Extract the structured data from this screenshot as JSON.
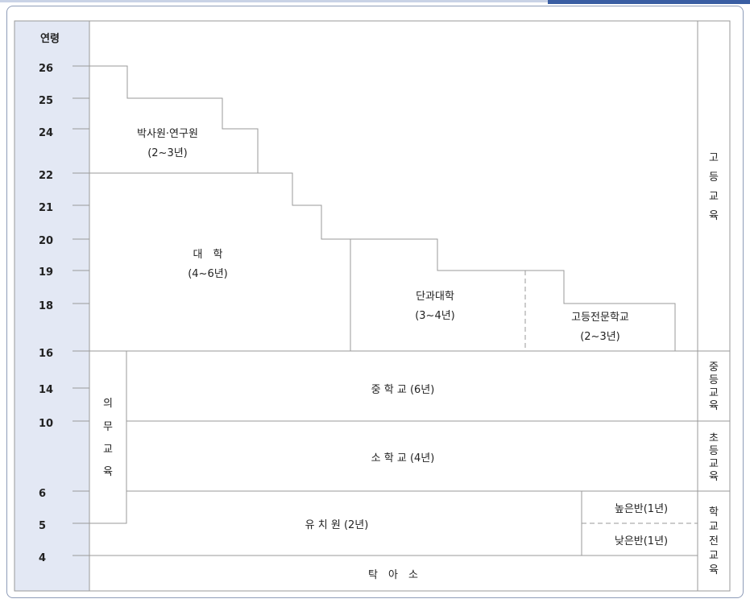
{
  "age_axis": {
    "header": "연령",
    "ages": [
      "26",
      "25",
      "24",
      "22",
      "21",
      "20",
      "19",
      "18",
      "16",
      "14",
      "10",
      "6",
      "5",
      "4"
    ]
  },
  "stages": {
    "graduate": {
      "name": "박사원·연구원",
      "duration": "(2~3년)"
    },
    "university": {
      "name": "대　학",
      "duration": "(4~6년)"
    },
    "college": {
      "name": "단과대학",
      "duration": "(3~4년)"
    },
    "vocational": {
      "name": "고등전문학교",
      "duration": "(2~3년)"
    },
    "middle_school": {
      "name": "중 학 교 (6년)"
    },
    "primary_school": {
      "name": "소 학 교 (4년)"
    },
    "kindergarten": {
      "name": "유 치 원 (2년)"
    },
    "kindergarten_upper": {
      "name": "높은반(1년)"
    },
    "kindergarten_lower": {
      "name": "낮은반(1년)"
    },
    "nursery": {
      "name": "탁　아　소"
    },
    "compulsory": {
      "chars": [
        "의",
        "무",
        "교",
        "육"
      ]
    }
  },
  "categories": {
    "higher": {
      "chars": [
        "고",
        "등",
        "교",
        "육"
      ]
    },
    "secondary": {
      "chars": [
        "중",
        "등",
        "교",
        "육"
      ]
    },
    "primary": {
      "chars": [
        "초",
        "등",
        "교",
        "육"
      ]
    },
    "preschool": {
      "chars": [
        "학",
        "교",
        "전",
        "교",
        "육"
      ]
    }
  },
  "colors": {
    "axis_bg": "#e3e8f4",
    "line": "#9a9a9a",
    "text": "#222222"
  }
}
